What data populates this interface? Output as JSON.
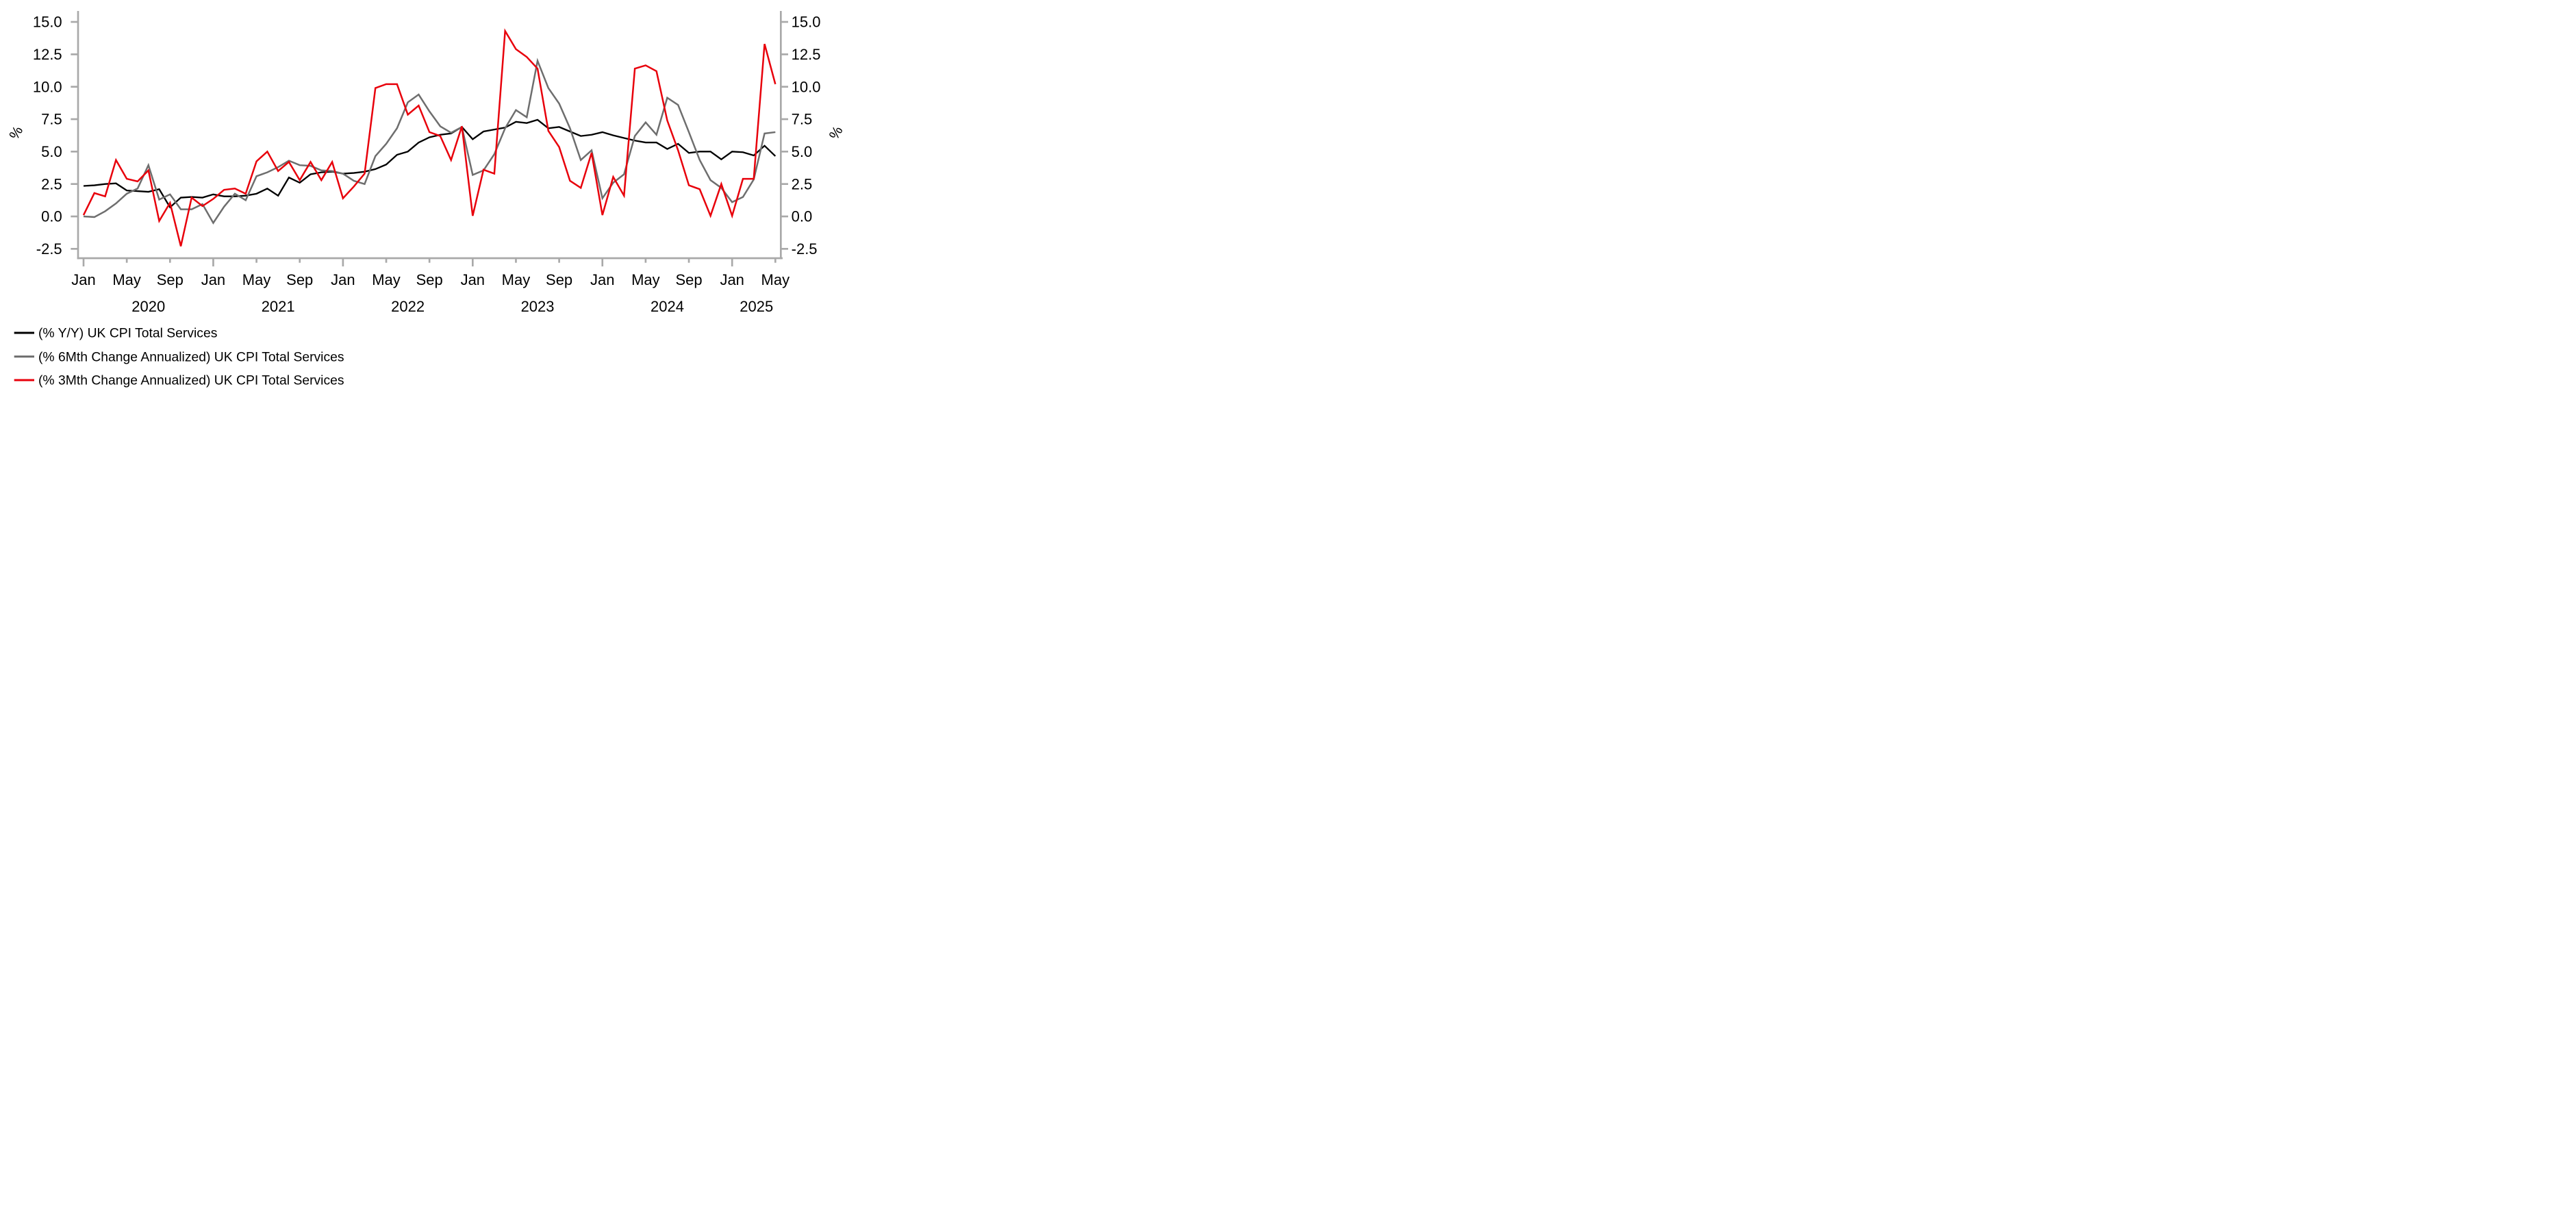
{
  "chart_data": {
    "type": "line",
    "title": "",
    "ylabel_left": "%",
    "ylabel_right": "%",
    "grid": false,
    "legend_position": "bottom-left",
    "ylim": [
      -3.2,
      15.9
    ],
    "y_ticks": [
      15.0,
      12.5,
      10.0,
      7.5,
      5.0,
      2.5,
      0.0,
      -2.5
    ],
    "x_tick_label_cycle": [
      "Jan",
      "May",
      "Sep"
    ],
    "x_tick_interval_months": 4,
    "year_labels": [
      "2020",
      "2021",
      "2022",
      "2023",
      "2024",
      "2025"
    ],
    "x": [
      "2020-01",
      "2020-02",
      "2020-03",
      "2020-04",
      "2020-05",
      "2020-06",
      "2020-07",
      "2020-08",
      "2020-09",
      "2020-10",
      "2020-11",
      "2020-12",
      "2021-01",
      "2021-02",
      "2021-03",
      "2021-04",
      "2021-05",
      "2021-06",
      "2021-07",
      "2021-08",
      "2021-09",
      "2021-10",
      "2021-11",
      "2021-12",
      "2022-01",
      "2022-02",
      "2022-03",
      "2022-04",
      "2022-05",
      "2022-06",
      "2022-07",
      "2022-08",
      "2022-09",
      "2022-10",
      "2022-11",
      "2022-12",
      "2023-01",
      "2023-02",
      "2023-03",
      "2023-04",
      "2023-05",
      "2023-06",
      "2023-07",
      "2023-08",
      "2023-09",
      "2023-10",
      "2023-11",
      "2023-12",
      "2024-01",
      "2024-02",
      "2024-03",
      "2024-04",
      "2024-05",
      "2024-06",
      "2024-07",
      "2024-08",
      "2024-09",
      "2024-10",
      "2024-11",
      "2024-12",
      "2025-01",
      "2025-02",
      "2025-03",
      "2025-04",
      "2025-05"
    ],
    "series": [
      {
        "id": "yy",
        "name": "(% Y/Y) UK CPI Total Services",
        "color": "#000000",
        "stroke_width": 7,
        "values": [
          2.35,
          2.4,
          2.5,
          2.55,
          2.0,
          1.95,
          1.9,
          2.1,
          0.7,
          1.45,
          1.5,
          1.45,
          1.7,
          1.55,
          1.55,
          1.6,
          1.75,
          2.15,
          1.6,
          3.0,
          2.6,
          3.25,
          3.4,
          3.45,
          3.3,
          3.35,
          3.45,
          3.65,
          4.0,
          4.75,
          5.0,
          5.7,
          6.1,
          6.3,
          6.4,
          6.9,
          5.95,
          6.55,
          6.7,
          6.85,
          7.3,
          7.2,
          7.45,
          6.8,
          6.9,
          6.55,
          6.2,
          6.3,
          6.5,
          6.25,
          6.05,
          5.85,
          5.7,
          5.7,
          5.2,
          5.6,
          4.9,
          5.0,
          5.0,
          4.4,
          5.0,
          4.95,
          4.7,
          5.45,
          4.65
        ]
      },
      {
        "id": "6m",
        "name": "(% 6Mth Change Annualized) UK CPI Total Services",
        "color": "#6e6e6e",
        "stroke_width": 7.5,
        "values": [
          0.0,
          -0.05,
          0.4,
          1.0,
          1.75,
          2.15,
          3.95,
          1.3,
          1.7,
          0.55,
          0.55,
          0.95,
          -0.5,
          0.75,
          1.75,
          1.25,
          3.1,
          3.4,
          3.8,
          4.3,
          3.95,
          3.9,
          3.55,
          3.5,
          3.3,
          2.75,
          2.5,
          4.65,
          5.6,
          6.8,
          8.8,
          9.4,
          8.1,
          6.95,
          6.45,
          6.9,
          3.2,
          3.55,
          4.8,
          6.8,
          8.2,
          7.65,
          12.0,
          9.9,
          8.7,
          6.8,
          4.35,
          5.1,
          1.4,
          2.6,
          3.25,
          6.2,
          7.25,
          6.3,
          9.15,
          8.6,
          6.5,
          4.35,
          2.8,
          2.2,
          1.1,
          1.5,
          2.85,
          6.4,
          6.5
        ]
      },
      {
        "id": "3m",
        "name": "(% 3Mth Change Annualized) UK CPI Total Services",
        "color": "#e8000b",
        "stroke_width": 7.5,
        "values": [
          0.1,
          1.8,
          1.55,
          4.35,
          2.9,
          2.7,
          3.55,
          -0.35,
          1.05,
          -2.3,
          1.45,
          0.8,
          1.35,
          2.05,
          2.15,
          1.75,
          4.25,
          5.0,
          3.5,
          4.2,
          2.8,
          4.2,
          2.8,
          4.2,
          1.4,
          2.3,
          3.3,
          9.9,
          10.2,
          10.2,
          7.85,
          8.55,
          6.5,
          6.2,
          4.35,
          6.95,
          0.05,
          3.6,
          3.3,
          14.3,
          12.9,
          12.3,
          11.4,
          6.6,
          5.35,
          2.75,
          2.2,
          4.9,
          0.1,
          3.05,
          1.6,
          11.4,
          11.65,
          11.2,
          7.4,
          5.1,
          2.4,
          2.1,
          0.05,
          2.5,
          0.05,
          2.9,
          2.9,
          13.3,
          10.2
        ]
      }
    ],
    "axis_color": "#a9a9a9"
  },
  "legend": {
    "items": [
      {
        "label": "(% Y/Y) UK CPI Total Services",
        "color": "#000000"
      },
      {
        "label": "(% 6Mth Change Annualized) UK CPI Total Services",
        "color": "#6e6e6e"
      },
      {
        "label": "(% 3Mth Change Annualized) UK CPI Total Services",
        "color": "#e8000b"
      }
    ]
  }
}
